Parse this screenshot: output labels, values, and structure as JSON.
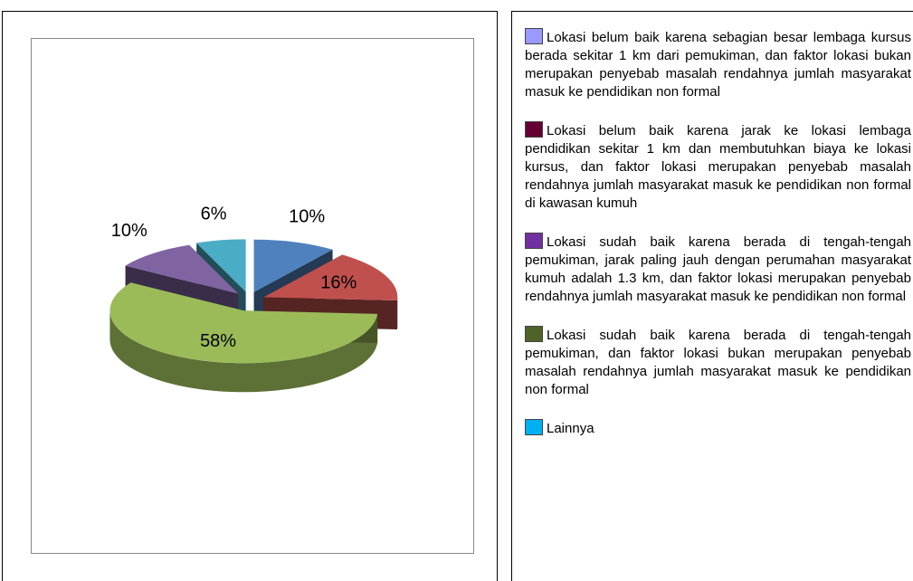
{
  "chart_data": {
    "type": "pie",
    "categories": [
      "Lokasi belum baik karena sebagian besar lembaga kursus berada sekitar 1 km dari pemukiman, dan faktor lokasi bukan merupakan penyebab masalah rendahnya jumlah masyarakat masuk ke pendidikan non formal",
      "Lokasi belum baik karena jarak ke lokasi lembaga pendidikan sekitar 1 km dan membutuhkan biaya ke lokasi kursus, dan faktor lokasi merupakan penyebab masalah rendahnya jumlah masyarakat masuk ke pendidikan non  formal di kawasan kumuh",
      "Lokasi sudah baik karena berada di tengah-tengah pemukiman, jarak paling jauh dengan perumahan masyarakat kumuh adalah 1.3 km, dan faktor lokasi merupakan penyebab rendahnya jumlah masyarakat masuk ke pendidikan non formal",
      "Lokasi sudah baik karena berada di tengah-tengah pemukiman, dan faktor lokasi bukan merupakan penyebab masalah rendahnya jumlah masyarakat masuk ke pendidikan non formal",
      "Lainnya"
    ],
    "values": [
      10,
      16,
      58,
      10,
      6
    ],
    "value_labels": [
      "10%",
      "16%",
      "58%",
      "10%",
      "6%"
    ],
    "colors": [
      "#4f81bd",
      "#c0504d",
      "#9bbb59",
      "#8064a2",
      "#4bacc6"
    ],
    "legend_colors": [
      "#9999ff",
      "#660033",
      "#7030a0",
      "#4f6228",
      "#00b0f0"
    ]
  }
}
